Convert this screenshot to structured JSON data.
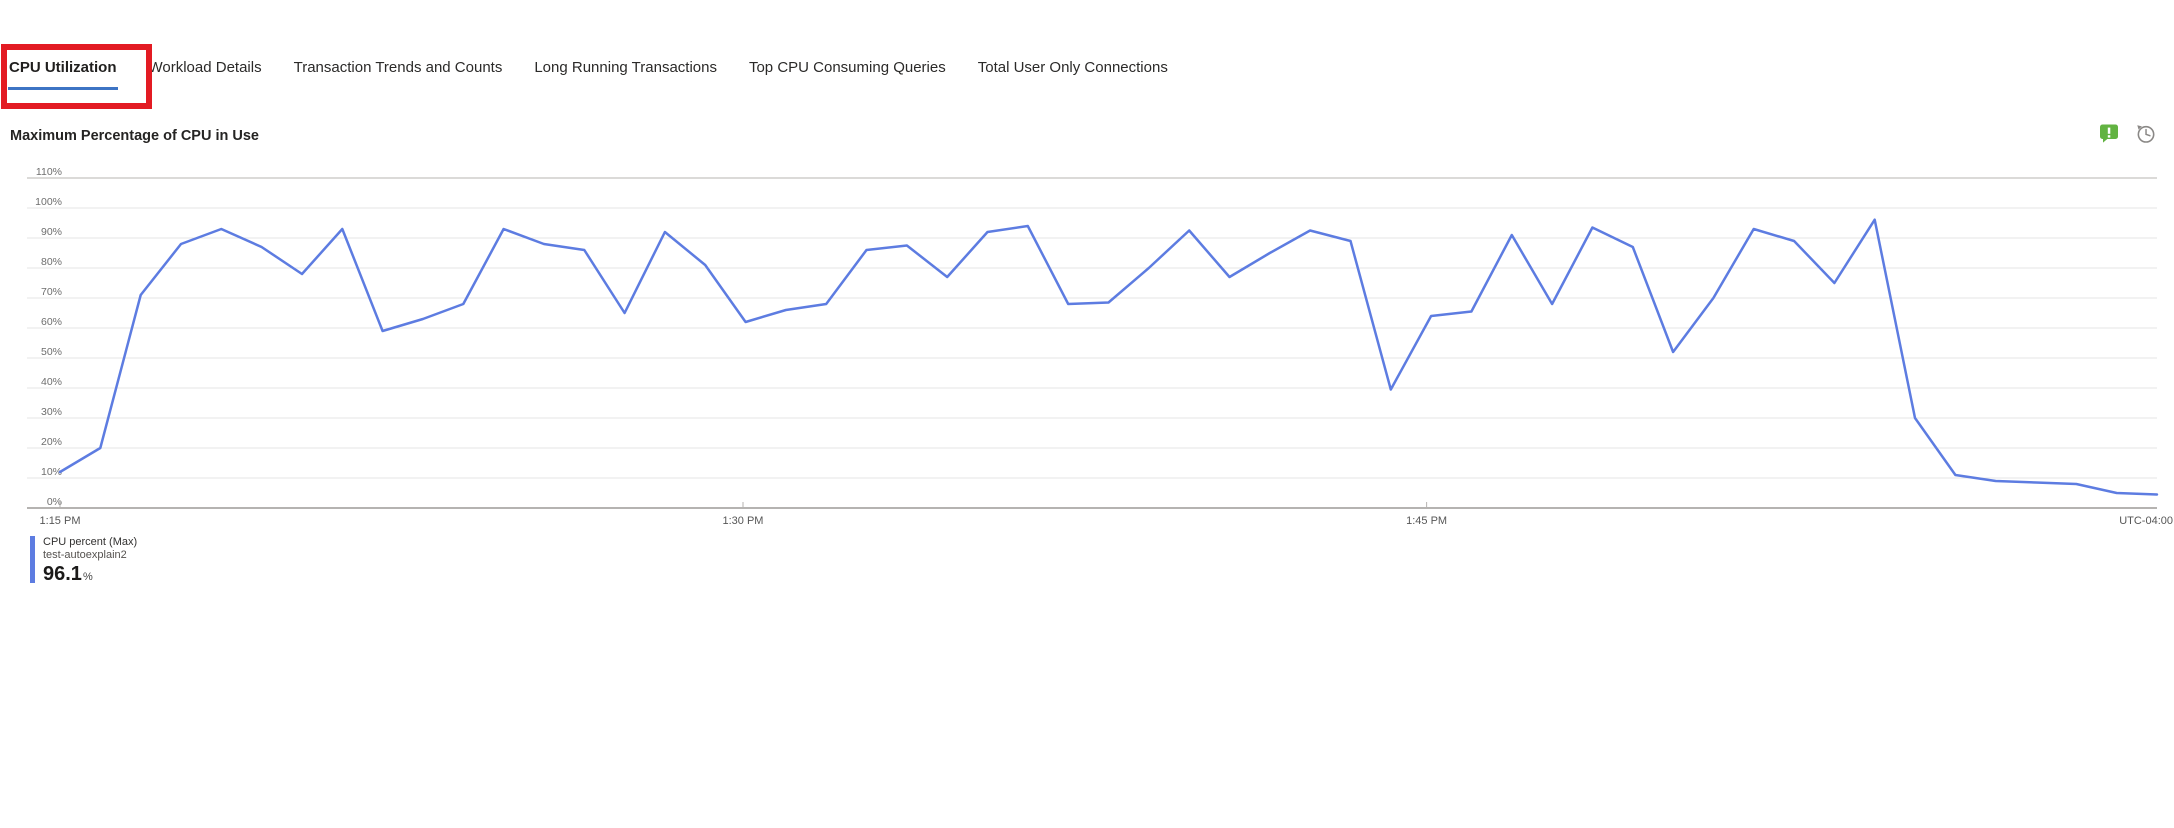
{
  "tabs": {
    "items": [
      {
        "label": "CPU Utilization",
        "active": true
      },
      {
        "label": "Workload Details",
        "active": false
      },
      {
        "label": "Transaction Trends and Counts",
        "active": false
      },
      {
        "label": "Long Running Transactions",
        "active": false
      },
      {
        "label": "Top CPU Consuming Queries",
        "active": false
      },
      {
        "label": "Total User Only Connections",
        "active": false
      }
    ],
    "active_underline_color": "#3d74c4"
  },
  "annotation": {
    "shape": "red-box-around-active-tab",
    "color": "#e31b23"
  },
  "panel": {
    "title": "Maximum Percentage of CPU in Use",
    "icons": [
      {
        "name": "feedback-icon",
        "color": "#62b342"
      },
      {
        "name": "history-icon",
        "color": "#8a8886"
      }
    ]
  },
  "chart_data": {
    "type": "line",
    "title": "Maximum Percentage of CPU in Use",
    "ylabel": "",
    "xlabel": "",
    "ylim": [
      0,
      110
    ],
    "grid": true,
    "legend_position": "bottom-left",
    "y_ticks": [
      "110%",
      "100%",
      "90%",
      "80%",
      "70%",
      "60%",
      "50%",
      "40%",
      "30%",
      "20%",
      "10%",
      "0%"
    ],
    "x_ticks": [
      {
        "label": "1:15 PM",
        "frac": 0
      },
      {
        "label": "1:30 PM",
        "frac": 0.3257
      },
      {
        "label": "1:45 PM",
        "frac": 0.6517
      }
    ],
    "x_end_label": "UTC-04:00",
    "series": [
      {
        "name": "CPU percent (Max)",
        "resource": "test-autoexplain2",
        "max_value": 96.1,
        "unit": "%",
        "color": "#5d7ce1",
        "values": [
          12,
          20,
          71,
          88,
          93,
          87,
          78,
          93,
          59,
          63,
          68,
          93,
          88,
          86,
          65,
          92,
          81,
          62,
          66,
          68,
          86,
          87.5,
          77,
          92,
          94,
          68,
          68.5,
          80,
          92.5,
          77,
          85,
          92.5,
          89,
          39.5,
          64,
          65.5,
          91,
          68,
          93.5,
          87,
          52,
          70,
          93,
          89,
          75,
          96.1,
          30,
          11,
          9,
          8.5,
          8,
          5,
          4.5
        ]
      }
    ]
  },
  "legend": {
    "bar_color": "#5d7ce1",
    "metric": "CPU percent (Max)",
    "resource": "test-autoexplain2",
    "value": "96.1",
    "unit": "%"
  }
}
